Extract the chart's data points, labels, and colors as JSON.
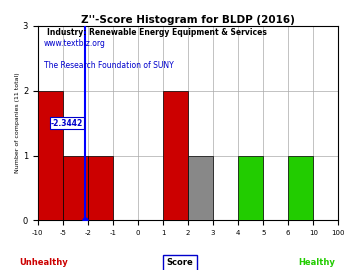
{
  "title": "Z''-Score Histogram for BLDP (2016)",
  "subtitle": "Industry: Renewable Energy Equipment & Services",
  "watermark1": "www.textbiz.org",
  "watermark2": "The Research Foundation of SUNY",
  "ylabel": "Number of companies (11 total)",
  "xlabel": "Score",
  "unhealthy_label": "Unhealthy",
  "healthy_label": "Healthy",
  "bldp_score": -2.3442,
  "bldp_label": "-2.3442",
  "bin_edges": [
    -10,
    -5,
    -2,
    -1,
    0,
    1,
    2,
    3,
    4,
    5,
    6,
    10,
    100
  ],
  "counts": [
    2,
    1,
    1,
    0,
    0,
    2,
    1,
    0,
    1,
    0,
    1,
    0
  ],
  "colors": [
    "#cc0000",
    "#cc0000",
    "#cc0000",
    "#cc0000",
    "#cc0000",
    "#cc0000",
    "#888888",
    "#888888",
    "#22cc00",
    "#22cc00",
    "#22cc00",
    "#22cc00"
  ],
  "ylim": [
    0,
    3
  ],
  "yticks": [
    0,
    1,
    2,
    3
  ],
  "background_color": "#ffffff",
  "plot_bg_color": "#ffffff",
  "title_color": "#000000",
  "subtitle_color": "#000000",
  "watermark_color": "#0000cc",
  "unhealthy_color": "#cc0000",
  "healthy_color": "#22cc00",
  "score_line_color": "#0000ff",
  "grid_color": "#aaaaaa"
}
